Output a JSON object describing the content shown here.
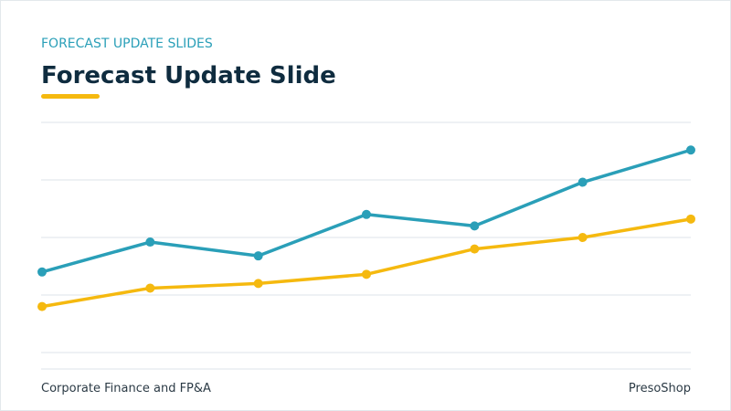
{
  "header": {
    "kicker": "FORECAST UPDATE SLIDES",
    "title": "Forecast Update Slide"
  },
  "chart_data": {
    "type": "line",
    "categories": [
      null,
      null,
      null,
      null,
      null,
      null,
      null
    ],
    "series": [
      {
        "color": "#2a9fb8",
        "values": [
          35,
          48,
          42,
          60,
          55,
          74,
          88
        ]
      },
      {
        "color": "#f5b90f",
        "values": [
          20,
          28,
          30,
          34,
          45,
          50,
          58
        ]
      }
    ],
    "ylim": [
      0,
      100
    ],
    "yticks": [
      0,
      25,
      50,
      75,
      100
    ],
    "grid": true
  },
  "footer": {
    "left": "Corporate Finance and FP&A",
    "right": "PresoShop"
  }
}
